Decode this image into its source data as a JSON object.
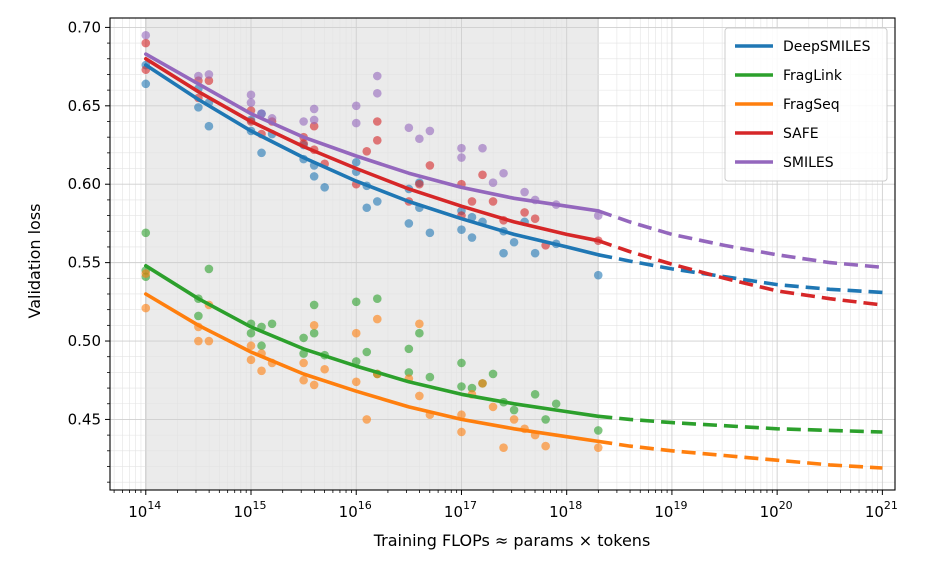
{
  "chart_data": {
    "type": "scatter",
    "title": "",
    "xlabel": "Training FLOPs ≈ params × tokens",
    "ylabel": "Validation loss",
    "xscale": "log",
    "xlim_exp": [
      13.66,
      21.12
    ],
    "ylim": [
      0.405,
      0.706
    ],
    "x_ticks": [
      {
        "base": "10",
        "exp": "14",
        "value_exp": 14
      },
      {
        "base": "10",
        "exp": "15",
        "value_exp": 15
      },
      {
        "base": "10",
        "exp": "16",
        "value_exp": 16
      },
      {
        "base": "10",
        "exp": "17",
        "value_exp": 17
      },
      {
        "base": "10",
        "exp": "18",
        "value_exp": 18
      },
      {
        "base": "10",
        "exp": "19",
        "value_exp": 19
      },
      {
        "base": "10",
        "exp": "20",
        "value_exp": 20
      },
      {
        "base": "10",
        "exp": "21",
        "value_exp": 21
      }
    ],
    "y_ticks": [
      {
        "label": "0.45",
        "value": 0.45
      },
      {
        "label": "0.50",
        "value": 0.5
      },
      {
        "label": "0.55",
        "value": 0.55
      },
      {
        "label": "0.60",
        "value": 0.6
      },
      {
        "label": "0.65",
        "value": 0.65
      },
      {
        "label": "0.70",
        "value": 0.7
      }
    ],
    "grid": true,
    "shaded_region_exp": [
      14,
      18.3
    ],
    "legend_position": "top-right",
    "series": [
      {
        "name": "DeepSMILES",
        "color": "#1f77b4",
        "fit_solid": [
          [
            14,
            0.676
          ],
          [
            14.5,
            0.654
          ],
          [
            15,
            0.634
          ],
          [
            15.5,
            0.617
          ],
          [
            16,
            0.602
          ],
          [
            16.5,
            0.589
          ],
          [
            17,
            0.578
          ],
          [
            17.5,
            0.568
          ],
          [
            18,
            0.56
          ],
          [
            18.3,
            0.555
          ]
        ],
        "fit_dashed": [
          [
            18.3,
            0.555
          ],
          [
            18.6,
            0.551
          ],
          [
            19,
            0.546
          ],
          [
            19.5,
            0.541
          ],
          [
            20,
            0.536
          ],
          [
            20.5,
            0.533
          ],
          [
            21,
            0.531
          ]
        ],
        "points": [
          [
            14,
            0.664
          ],
          [
            14,
            0.676
          ],
          [
            14.5,
            0.649
          ],
          [
            14.5,
            0.661
          ],
          [
            14.6,
            0.652
          ],
          [
            14.6,
            0.637
          ],
          [
            15,
            0.641
          ],
          [
            15,
            0.634
          ],
          [
            15.1,
            0.645
          ],
          [
            15.1,
            0.62
          ],
          [
            15.2,
            0.632
          ],
          [
            15.5,
            0.625
          ],
          [
            15.5,
            0.616
          ],
          [
            15.6,
            0.605
          ],
          [
            15.6,
            0.612
          ],
          [
            15.7,
            0.598
          ],
          [
            16,
            0.614
          ],
          [
            16,
            0.608
          ],
          [
            16.1,
            0.585
          ],
          [
            16.1,
            0.599
          ],
          [
            16.2,
            0.589
          ],
          [
            16.5,
            0.597
          ],
          [
            16.5,
            0.575
          ],
          [
            16.6,
            0.585
          ],
          [
            16.6,
            0.601
          ],
          [
            16.7,
            0.569
          ],
          [
            17,
            0.583
          ],
          [
            17,
            0.571
          ],
          [
            17.1,
            0.579
          ],
          [
            17.1,
            0.566
          ],
          [
            17.2,
            0.576
          ],
          [
            17.4,
            0.57
          ],
          [
            17.4,
            0.556
          ],
          [
            17.5,
            0.563
          ],
          [
            17.6,
            0.576
          ],
          [
            17.7,
            0.556
          ],
          [
            17.9,
            0.562
          ],
          [
            18.3,
            0.542
          ]
        ]
      },
      {
        "name": "FragLink",
        "color": "#2ca02c",
        "fit_solid": [
          [
            14,
            0.548
          ],
          [
            14.5,
            0.527
          ],
          [
            15,
            0.509
          ],
          [
            15.5,
            0.495
          ],
          [
            16,
            0.484
          ],
          [
            16.5,
            0.474
          ],
          [
            17,
            0.466
          ],
          [
            17.5,
            0.46
          ],
          [
            18,
            0.455
          ],
          [
            18.3,
            0.452
          ]
        ],
        "fit_dashed": [
          [
            18.3,
            0.452
          ],
          [
            18.6,
            0.45
          ],
          [
            19,
            0.448
          ],
          [
            19.5,
            0.446
          ],
          [
            20,
            0.444
          ],
          [
            20.5,
            0.443
          ],
          [
            21,
            0.442
          ]
        ],
        "points": [
          [
            14,
            0.569
          ],
          [
            14,
            0.545
          ],
          [
            14,
            0.541
          ],
          [
            14.5,
            0.527
          ],
          [
            14.5,
            0.516
          ],
          [
            14.6,
            0.546
          ],
          [
            15,
            0.511
          ],
          [
            15,
            0.505
          ],
          [
            15.1,
            0.509
          ],
          [
            15.1,
            0.497
          ],
          [
            15.2,
            0.511
          ],
          [
            15.5,
            0.502
          ],
          [
            15.5,
            0.492
          ],
          [
            15.6,
            0.523
          ],
          [
            15.6,
            0.505
          ],
          [
            15.7,
            0.491
          ],
          [
            16,
            0.525
          ],
          [
            16,
            0.487
          ],
          [
            16.1,
            0.493
          ],
          [
            16.2,
            0.479
          ],
          [
            16.2,
            0.527
          ],
          [
            16.5,
            0.495
          ],
          [
            16.5,
            0.48
          ],
          [
            16.6,
            0.505
          ],
          [
            16.7,
            0.477
          ],
          [
            17,
            0.486
          ],
          [
            17,
            0.471
          ],
          [
            17.1,
            0.47
          ],
          [
            17.2,
            0.473
          ],
          [
            17.3,
            0.479
          ],
          [
            17.4,
            0.461
          ],
          [
            17.5,
            0.456
          ],
          [
            17.7,
            0.466
          ],
          [
            17.8,
            0.45
          ],
          [
            17.9,
            0.46
          ],
          [
            18.3,
            0.443
          ]
        ]
      },
      {
        "name": "FragSeq",
        "color": "#ff7f0e",
        "fit_solid": [
          [
            14,
            0.53
          ],
          [
            14.5,
            0.51
          ],
          [
            15,
            0.493
          ],
          [
            15.5,
            0.479
          ],
          [
            16,
            0.468
          ],
          [
            16.5,
            0.458
          ],
          [
            17,
            0.45
          ],
          [
            17.5,
            0.444
          ],
          [
            18,
            0.439
          ],
          [
            18.3,
            0.436
          ]
        ],
        "fit_dashed": [
          [
            18.3,
            0.436
          ],
          [
            18.6,
            0.433
          ],
          [
            19,
            0.43
          ],
          [
            19.5,
            0.427
          ],
          [
            20,
            0.424
          ],
          [
            20.5,
            0.421
          ],
          [
            21,
            0.419
          ]
        ],
        "points": [
          [
            14,
            0.543
          ],
          [
            14,
            0.521
          ],
          [
            14.5,
            0.509
          ],
          [
            14.5,
            0.5
          ],
          [
            14.6,
            0.523
          ],
          [
            14.6,
            0.5
          ],
          [
            15,
            0.497
          ],
          [
            15,
            0.488
          ],
          [
            15.1,
            0.481
          ],
          [
            15.1,
            0.492
          ],
          [
            15.2,
            0.486
          ],
          [
            15.5,
            0.475
          ],
          [
            15.5,
            0.486
          ],
          [
            15.6,
            0.472
          ],
          [
            15.6,
            0.51
          ],
          [
            15.7,
            0.482
          ],
          [
            16,
            0.505
          ],
          [
            16,
            0.474
          ],
          [
            16.1,
            0.45
          ],
          [
            16.2,
            0.514
          ],
          [
            16.2,
            0.479
          ],
          [
            16.5,
            0.476
          ],
          [
            16.6,
            0.511
          ],
          [
            16.6,
            0.465
          ],
          [
            16.7,
            0.453
          ],
          [
            17,
            0.442
          ],
          [
            17,
            0.453
          ],
          [
            17.1,
            0.466
          ],
          [
            17.2,
            0.473
          ],
          [
            17.3,
            0.458
          ],
          [
            17.4,
            0.432
          ],
          [
            17.5,
            0.45
          ],
          [
            17.6,
            0.444
          ],
          [
            17.7,
            0.44
          ],
          [
            17.8,
            0.433
          ],
          [
            18.3,
            0.432
          ]
        ]
      },
      {
        "name": "SAFE",
        "color": "#d62728",
        "fit_solid": [
          [
            14,
            0.68
          ],
          [
            14.5,
            0.659
          ],
          [
            15,
            0.64
          ],
          [
            15.5,
            0.624
          ],
          [
            16,
            0.61
          ],
          [
            16.5,
            0.597
          ],
          [
            17,
            0.586
          ],
          [
            17.5,
            0.576
          ],
          [
            18,
            0.568
          ],
          [
            18.3,
            0.564
          ]
        ],
        "fit_dashed": [
          [
            18.3,
            0.564
          ],
          [
            18.6,
            0.557
          ],
          [
            19,
            0.549
          ],
          [
            19.5,
            0.54
          ],
          [
            20,
            0.532
          ],
          [
            20.5,
            0.527
          ],
          [
            21,
            0.523
          ]
        ],
        "points": [
          [
            14,
            0.69
          ],
          [
            14,
            0.673
          ],
          [
            14.5,
            0.666
          ],
          [
            14.5,
            0.655
          ],
          [
            14.6,
            0.666
          ],
          [
            15,
            0.647
          ],
          [
            15,
            0.64
          ],
          [
            15.1,
            0.632
          ],
          [
            15.2,
            0.64
          ],
          [
            15.5,
            0.626
          ],
          [
            15.5,
            0.63
          ],
          [
            15.6,
            0.637
          ],
          [
            15.6,
            0.622
          ],
          [
            15.7,
            0.613
          ],
          [
            16,
            0.6
          ],
          [
            16.1,
            0.621
          ],
          [
            16.2,
            0.64
          ],
          [
            16.2,
            0.628
          ],
          [
            16.5,
            0.589
          ],
          [
            16.6,
            0.6
          ],
          [
            16.7,
            0.612
          ],
          [
            17,
            0.58
          ],
          [
            17,
            0.6
          ],
          [
            17.1,
            0.589
          ],
          [
            17.2,
            0.606
          ],
          [
            17.3,
            0.589
          ],
          [
            17.4,
            0.577
          ],
          [
            17.6,
            0.582
          ],
          [
            17.7,
            0.578
          ],
          [
            17.8,
            0.561
          ],
          [
            18.3,
            0.564
          ]
        ]
      },
      {
        "name": "SMILES",
        "color": "#9467bd",
        "fit_solid": [
          [
            14,
            0.683
          ],
          [
            14.5,
            0.664
          ],
          [
            15,
            0.645
          ],
          [
            15.5,
            0.63
          ],
          [
            16,
            0.618
          ],
          [
            16.5,
            0.607
          ],
          [
            17,
            0.598
          ],
          [
            17.5,
            0.591
          ],
          [
            18,
            0.586
          ],
          [
            18.3,
            0.583
          ]
        ],
        "fit_dashed": [
          [
            18.3,
            0.583
          ],
          [
            18.6,
            0.576
          ],
          [
            19,
            0.568
          ],
          [
            19.5,
            0.561
          ],
          [
            20,
            0.555
          ],
          [
            20.5,
            0.55
          ],
          [
            21,
            0.547
          ]
        ],
        "points": [
          [
            14,
            0.695
          ],
          [
            14.5,
            0.669
          ],
          [
            14.6,
            0.67
          ],
          [
            15,
            0.657
          ],
          [
            15,
            0.652
          ],
          [
            15.1,
            0.645
          ],
          [
            15.2,
            0.642
          ],
          [
            15.5,
            0.64
          ],
          [
            15.6,
            0.648
          ],
          [
            15.6,
            0.641
          ],
          [
            16,
            0.65
          ],
          [
            16,
            0.639
          ],
          [
            16.2,
            0.669
          ],
          [
            16.2,
            0.658
          ],
          [
            16.5,
            0.636
          ],
          [
            16.6,
            0.629
          ],
          [
            16.7,
            0.634
          ],
          [
            17,
            0.623
          ],
          [
            17,
            0.617
          ],
          [
            17.2,
            0.623
          ],
          [
            17.3,
            0.601
          ],
          [
            17.4,
            0.607
          ],
          [
            17.6,
            0.595
          ],
          [
            17.7,
            0.59
          ],
          [
            17.9,
            0.587
          ],
          [
            18.3,
            0.58
          ]
        ]
      }
    ]
  }
}
